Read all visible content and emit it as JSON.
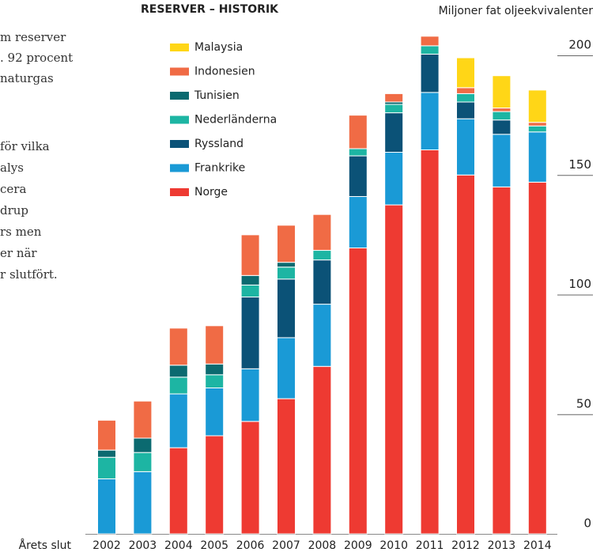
{
  "side_text": [
    "m reserver",
    ". 92 procent",
    " naturgas",
    "för vilka",
    "alys",
    "cera",
    "drup",
    "rs men",
    "er när",
    "r slutfört."
  ],
  "chart_data": {
    "type": "stacked-bar",
    "title": "RESERVER – HISTORIK",
    "y_label": "Miljoner fat oljeekvivalenter",
    "x_label": "Årets slut",
    "categories": [
      "2002",
      "2003",
      "2004",
      "2005",
      "2006",
      "2007",
      "2008",
      "2009",
      "2010",
      "2011",
      "2012",
      "2013",
      "2014"
    ],
    "series": [
      {
        "name": "Norge",
        "color": "#ee3a32",
        "values": [
          0,
          0,
          36,
          41,
          47,
          56.5,
          70,
          119.5,
          137.5,
          160.5,
          150,
          145,
          147
        ]
      },
      {
        "name": "Frankrike",
        "color": "#1a9ad6",
        "values": [
          23,
          26,
          22.5,
          20,
          22,
          25.5,
          26,
          21.5,
          22,
          24,
          23.5,
          22,
          21
        ]
      },
      {
        "name": "Ryssland",
        "color": "#0b5277",
        "values": [
          0,
          0,
          0,
          0,
          30,
          24.5,
          18.5,
          17,
          16.5,
          16,
          7,
          6,
          0
        ]
      },
      {
        "name": "Nederländerna",
        "color": "#1db5a3",
        "values": [
          9,
          8,
          7,
          5.5,
          5,
          5,
          4,
          3,
          3.5,
          3.5,
          3.5,
          3.5,
          2.5
        ]
      },
      {
        "name": "Tunisien",
        "color": "#0b6a70",
        "values": [
          3,
          6,
          5,
          4.5,
          4,
          2,
          0,
          0,
          1,
          0,
          0,
          0,
          0
        ]
      },
      {
        "name": "Indonesien",
        "color": "#f06b45",
        "values": [
          12.5,
          15.5,
          15.5,
          16,
          17,
          15.5,
          15,
          14,
          3.5,
          4,
          2.5,
          1.5,
          1.5
        ]
      },
      {
        "name": "Malaysia",
        "color": "#ffd617",
        "values": [
          0,
          0,
          0,
          0,
          0,
          0,
          0,
          0,
          0,
          0,
          12.5,
          13.5,
          13.5
        ]
      }
    ],
    "ylim": [
      0,
      210
    ],
    "yticks": [
      0,
      50,
      100,
      150,
      200
    ]
  }
}
